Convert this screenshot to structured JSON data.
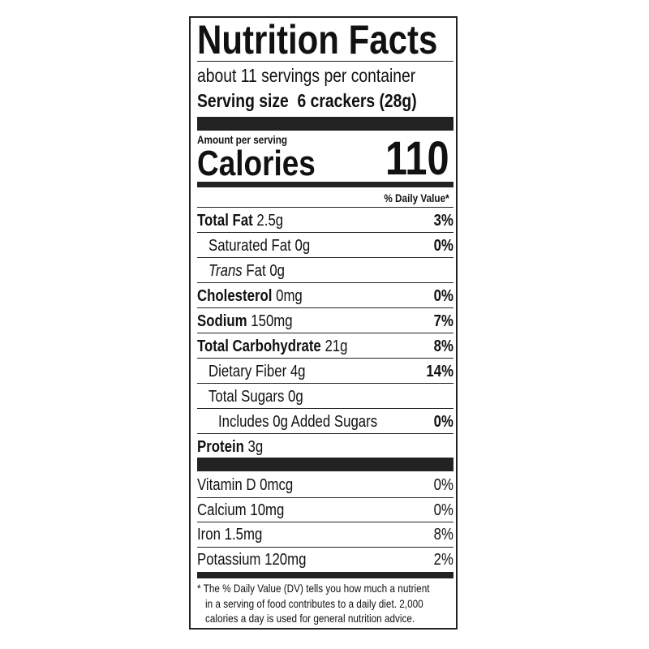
{
  "title": "Nutrition Facts",
  "servings_per_container": "about 11 servings per container",
  "serving_size_label": "Serving size",
  "serving_size_value": "6 crackers (28g)",
  "amount_per_serving": "Amount per serving",
  "calories_label": "Calories",
  "calories_value": "110",
  "daily_value_header": "% Daily Value*",
  "nutrients": [
    {
      "name": "Total Fat",
      "amount": "2.5g",
      "dv": "3%"
    },
    {
      "name": "Saturated Fat",
      "amount": "0g",
      "dv": "0%"
    },
    {
      "name": "Trans",
      "name_suffix": "Fat",
      "amount": "0g",
      "dv": ""
    },
    {
      "name": "Cholesterol",
      "amount": "0mg",
      "dv": "0%"
    },
    {
      "name": "Sodium",
      "amount": "150mg",
      "dv": "7%"
    },
    {
      "name": "Total Carbohydrate",
      "amount": "21g",
      "dv": "8%"
    },
    {
      "name": "Dietary Fiber",
      "amount": "4g",
      "dv": "14%"
    },
    {
      "name": "Total Sugars",
      "amount": "0g",
      "dv": ""
    },
    {
      "name": "Includes 0g Added Sugars",
      "amount": "",
      "dv": "0%"
    },
    {
      "name": "Protein",
      "amount": "3g",
      "dv": ""
    }
  ],
  "vitamins": [
    {
      "name": "Vitamin D 0mcg",
      "dv": "0%"
    },
    {
      "name": "Calcium 10mg",
      "dv": "0%"
    },
    {
      "name": "Iron 1.5mg",
      "dv": "8%"
    },
    {
      "name": "Potassium 120mg",
      "dv": "2%"
    }
  ],
  "footnote": [
    "* The % Daily Value (DV) tells you how much a nutrient",
    "in a serving of food contributes to a daily diet. 2,000",
    "calories a day is used for general nutrition advice."
  ]
}
